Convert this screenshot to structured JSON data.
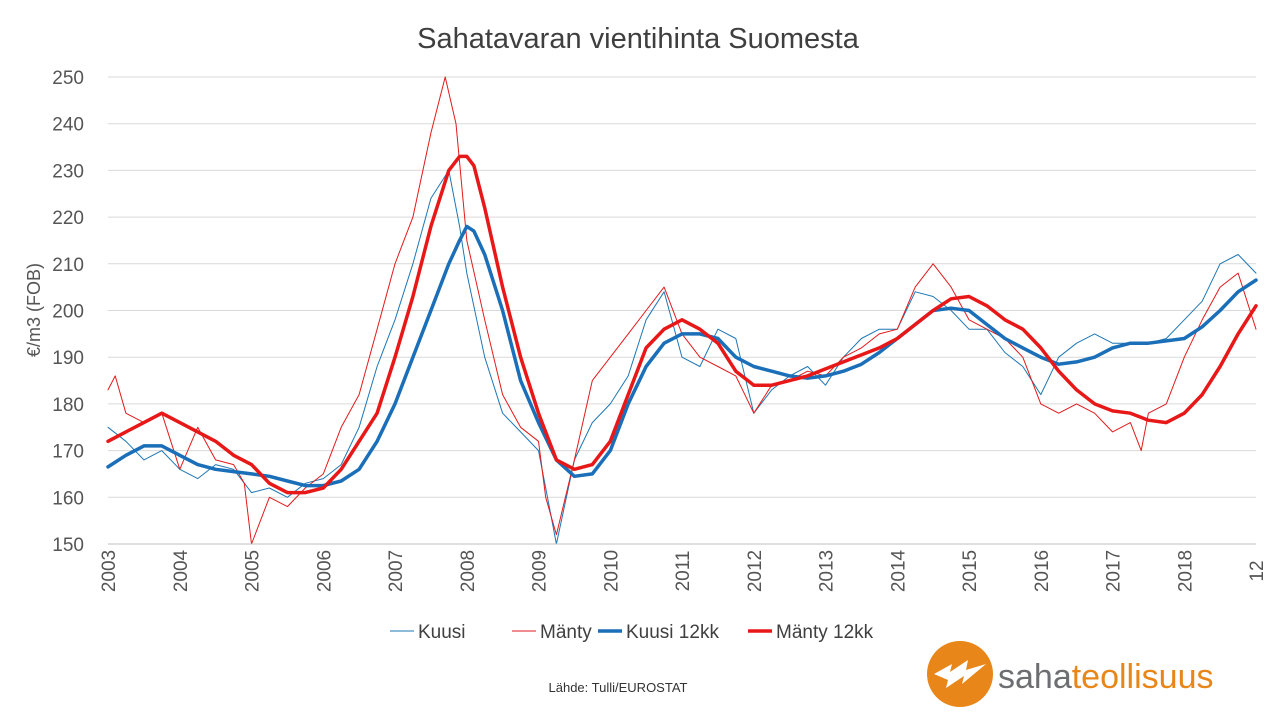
{
  "chart_data": {
    "type": "line",
    "title": "Sahatavaran vientihinta Suomesta",
    "ylabel": "€/m3 (FOB)",
    "xlabel": "",
    "ylim": [
      150,
      250
    ],
    "xlim": [
      2003,
      2019
    ],
    "yticks": [
      150,
      160,
      170,
      180,
      190,
      200,
      210,
      220,
      230,
      240,
      250
    ],
    "xtick_labels": [
      "2003",
      "2004",
      "2005",
      "2006",
      "2007",
      "2008",
      "2009",
      "2010",
      "2011",
      "2012",
      "2013",
      "2014",
      "2015",
      "2016",
      "2017",
      "2018",
      "12"
    ],
    "grid": "horizontal",
    "legend_position": "bottom",
    "series": [
      {
        "name": "Kuusi",
        "color": "#1f77b4",
        "width": 1,
        "x": [
          2003.0,
          2003.25,
          2003.5,
          2003.75,
          2004.0,
          2004.25,
          2004.5,
          2004.75,
          2005.0,
          2005.25,
          2005.5,
          2005.75,
          2006.0,
          2006.25,
          2006.5,
          2006.75,
          2007.0,
          2007.25,
          2007.5,
          2007.75,
          2007.9,
          2008.0,
          2008.25,
          2008.5,
          2008.75,
          2009.0,
          2009.1,
          2009.25,
          2009.5,
          2009.75,
          2010.0,
          2010.25,
          2010.5,
          2010.75,
          2011.0,
          2011.25,
          2011.5,
          2011.75,
          2012.0,
          2012.25,
          2012.5,
          2012.75,
          2013.0,
          2013.25,
          2013.5,
          2013.75,
          2014.0,
          2014.25,
          2014.5,
          2014.75,
          2015.0,
          2015.25,
          2015.5,
          2015.75,
          2016.0,
          2016.25,
          2016.5,
          2016.75,
          2017.0,
          2017.25,
          2017.5,
          2017.75,
          2018.0,
          2018.25,
          2018.5,
          2018.75,
          2019.0
        ],
        "y": [
          175,
          172,
          168,
          170,
          166,
          164,
          167,
          166,
          161,
          162,
          160,
          163,
          164,
          167,
          175,
          188,
          198,
          210,
          224,
          230,
          218,
          208,
          190,
          178,
          174,
          170,
          162,
          150,
          168,
          176,
          180,
          186,
          198,
          204,
          190,
          188,
          196,
          194,
          178,
          183,
          186,
          188,
          184,
          190,
          194,
          196,
          196,
          204,
          203,
          200,
          196,
          196,
          191,
          188,
          182,
          190,
          193,
          195,
          193,
          193,
          193,
          194,
          198,
          202,
          210,
          212,
          208
        ]
      },
      {
        "name": "Mänty",
        "color": "#e31a1c",
        "width": 1,
        "x": [
          2003.0,
          2003.1,
          2003.25,
          2003.5,
          2003.75,
          2004.0,
          2004.25,
          2004.5,
          2004.75,
          2004.9,
          2005.0,
          2005.25,
          2005.5,
          2005.75,
          2006.0,
          2006.25,
          2006.5,
          2006.75,
          2007.0,
          2007.25,
          2007.5,
          2007.7,
          2007.85,
          2008.0,
          2008.25,
          2008.5,
          2008.75,
          2009.0,
          2009.1,
          2009.25,
          2009.5,
          2009.75,
          2010.0,
          2010.25,
          2010.5,
          2010.75,
          2011.0,
          2011.25,
          2011.5,
          2011.75,
          2012.0,
          2012.25,
          2012.5,
          2012.75,
          2013.0,
          2013.25,
          2013.5,
          2013.75,
          2014.0,
          2014.25,
          2014.5,
          2014.75,
          2015.0,
          2015.25,
          2015.5,
          2015.75,
          2016.0,
          2016.25,
          2016.5,
          2016.75,
          2017.0,
          2017.25,
          2017.4,
          2017.5,
          2017.75,
          2018.0,
          2018.25,
          2018.5,
          2018.75,
          2019.0
        ],
        "y": [
          183,
          186,
          178,
          176,
          178,
          166,
          175,
          168,
          167,
          163,
          150,
          160,
          158,
          162,
          165,
          175,
          182,
          196,
          210,
          220,
          238,
          250,
          240,
          215,
          198,
          182,
          175,
          172,
          160,
          152,
          168,
          185,
          190,
          195,
          200,
          205,
          195,
          190,
          188,
          186,
          178,
          184,
          185,
          187,
          186,
          190,
          192,
          195,
          196,
          205,
          210,
          205,
          198,
          196,
          194,
          190,
          180,
          178,
          180,
          178,
          174,
          176,
          170,
          178,
          180,
          190,
          198,
          205,
          208,
          196
        ]
      },
      {
        "name": "Kuusi 12kk",
        "color": "#1a6fb8",
        "width": 3.5,
        "x": [
          2003.0,
          2003.25,
          2003.5,
          2003.75,
          2004.0,
          2004.25,
          2004.5,
          2004.75,
          2005.0,
          2005.25,
          2005.5,
          2005.75,
          2006.0,
          2006.25,
          2006.5,
          2006.75,
          2007.0,
          2007.25,
          2007.5,
          2007.75,
          2007.9,
          2008.0,
          2008.1,
          2008.25,
          2008.5,
          2008.75,
          2009.0,
          2009.25,
          2009.5,
          2009.75,
          2010.0,
          2010.25,
          2010.5,
          2010.75,
          2011.0,
          2011.25,
          2011.5,
          2011.75,
          2012.0,
          2012.25,
          2012.5,
          2012.75,
          2013.0,
          2013.25,
          2013.5,
          2013.75,
          2014.0,
          2014.25,
          2014.5,
          2014.75,
          2015.0,
          2015.25,
          2015.5,
          2015.75,
          2016.0,
          2016.25,
          2016.5,
          2016.75,
          2017.0,
          2017.25,
          2017.5,
          2017.75,
          2018.0,
          2018.25,
          2018.5,
          2018.75,
          2019.0
        ],
        "y": [
          166.5,
          169,
          171,
          171,
          169,
          167,
          166,
          165.5,
          165,
          164.5,
          163.5,
          162.5,
          162.5,
          163.5,
          166,
          172,
          180,
          190,
          200,
          210,
          215,
          218,
          217,
          212,
          200,
          185,
          176,
          168,
          164.5,
          165,
          170,
          180,
          188,
          193,
          195,
          195,
          194,
          190,
          188,
          187,
          186,
          185.5,
          186,
          187,
          188.5,
          191,
          194,
          197,
          200,
          200.5,
          200,
          197,
          194,
          192,
          190,
          188.5,
          189,
          190,
          192,
          193,
          193,
          193.5,
          194,
          196.5,
          200,
          204,
          206.5
        ]
      },
      {
        "name": "Mänty 12kk",
        "color": "#e81818",
        "width": 3.5,
        "x": [
          2003.0,
          2003.25,
          2003.5,
          2003.75,
          2004.0,
          2004.25,
          2004.5,
          2004.75,
          2005.0,
          2005.25,
          2005.5,
          2005.75,
          2006.0,
          2006.25,
          2006.5,
          2006.75,
          2007.0,
          2007.25,
          2007.5,
          2007.75,
          2007.9,
          2008.0,
          2008.1,
          2008.25,
          2008.5,
          2008.75,
          2009.0,
          2009.25,
          2009.5,
          2009.75,
          2010.0,
          2010.25,
          2010.5,
          2010.75,
          2011.0,
          2011.25,
          2011.5,
          2011.75,
          2012.0,
          2012.25,
          2012.5,
          2012.75,
          2013.0,
          2013.25,
          2013.5,
          2013.75,
          2014.0,
          2014.25,
          2014.5,
          2014.75,
          2015.0,
          2015.25,
          2015.5,
          2015.75,
          2016.0,
          2016.25,
          2016.5,
          2016.75,
          2017.0,
          2017.25,
          2017.5,
          2017.75,
          2018.0,
          2018.25,
          2018.5,
          2018.75,
          2019.0
        ],
        "y": [
          172,
          174,
          176,
          178,
          176,
          174,
          172,
          169,
          167,
          163,
          161,
          161,
          162,
          166,
          172,
          178,
          190,
          203,
          218,
          230,
          233,
          233,
          231,
          222,
          205,
          190,
          178,
          168,
          166,
          167,
          172,
          182,
          192,
          196,
          198,
          196,
          193,
          187,
          184,
          184,
          185,
          186,
          187.5,
          189,
          190.5,
          192,
          194,
          197,
          200,
          202.5,
          203,
          201,
          198,
          196,
          192,
          187,
          183,
          180,
          178.5,
          178,
          176.5,
          176,
          178,
          182,
          188,
          195,
          201
        ]
      }
    ]
  },
  "legend": [
    "Kuusi",
    "Mänty",
    "Kuusi 12kk",
    "Mänty 12kk"
  ],
  "source": "Lähde: Tulli/EUROSTAT",
  "logo": {
    "part1": "saha",
    "part2": "teollisuus",
    "orange": "#e8861a",
    "gray": "#6d6e71"
  }
}
